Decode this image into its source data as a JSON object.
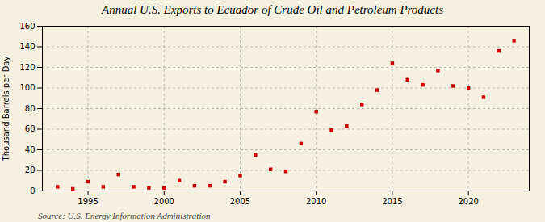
{
  "chart_data": {
    "type": "scatter",
    "title": "Annual U.S. Exports to Ecuador of Crude Oil and Petroleum Products",
    "ylabel": "Thousand Barrels per Day",
    "annotations": [
      "Source: U.S. Energy Information Administration"
    ],
    "x": [
      1993,
      1994,
      1995,
      1996,
      1997,
      1998,
      1999,
      2000,
      2001,
      2002,
      2003,
      2004,
      2005,
      2006,
      2007,
      2008,
      2009,
      2010,
      2011,
      2012,
      2013,
      2014,
      2015,
      2016,
      2017,
      2018,
      2019,
      2020,
      2021,
      2022,
      2023
    ],
    "values": [
      4,
      2,
      9,
      4,
      16,
      4,
      3,
      3,
      10,
      5,
      5,
      9,
      15,
      35,
      21,
      19,
      46,
      77,
      59,
      63,
      84,
      98,
      124,
      108,
      103,
      117,
      102,
      100,
      91,
      136,
      146
    ],
    "color": "#cc0000",
    "marker": "square",
    "xlim": [
      1992,
      2024
    ],
    "ylim": [
      0,
      160
    ],
    "xticks": [
      1995,
      2000,
      2005,
      2010,
      2015,
      2020
    ],
    "yticks": [
      0,
      20,
      40,
      60,
      80,
      100,
      120,
      140,
      160
    ],
    "grid": true
  }
}
